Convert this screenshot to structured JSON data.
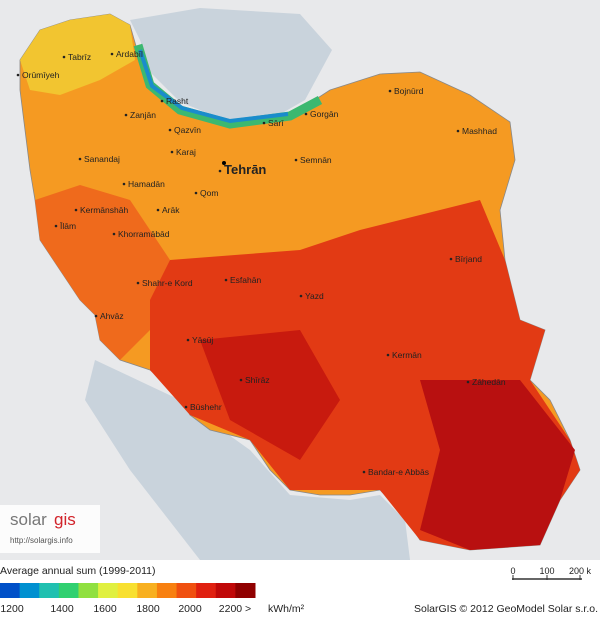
{
  "map": {
    "cities": [
      "Tabrīz",
      "Ardabīl",
      "Orūmīyeh",
      "Rasht",
      "Zanjān",
      "Qazvīn",
      "Sārī",
      "Gorgān",
      "Bojnūrd",
      "Mashhad",
      "Sanandaj",
      "Karaj",
      "Tehrān",
      "Semnān",
      "Hamadān",
      "Qom",
      "Kermānshāh",
      "Arāk",
      "Īlām",
      "Khorramābād",
      "Esfahān",
      "Bīrjand",
      "Shahr-e Kord",
      "Yazd",
      "Ahvāz",
      "Yāsūj",
      "Kermān",
      "Shīrāz",
      "Zāhedān",
      "Būshehr",
      "Bandar-e Abbās"
    ],
    "logo": {
      "solar": "solar",
      "gis": "gis",
      "url": "http://solargis.info"
    },
    "legend": {
      "title": "Average annual sum (1999-2011)",
      "colors": [
        "#0050c8",
        "#0090d0",
        "#20c0b0",
        "#30d070",
        "#90e040",
        "#e0f040",
        "#f8e030",
        "#f8b020",
        "#f88010",
        "#f05010",
        "#e02010",
        "#c00808",
        "#900000"
      ],
      "labels": [
        "1200",
        "1400",
        "1600",
        "1800",
        "2000",
        "2200 >"
      ],
      "unit": "kWh/m²"
    },
    "scale": {
      "labels": [
        "0",
        "100",
        "200 k"
      ]
    },
    "credit": "SolarGIS © 2012 GeoModel Solar s.r.o."
  }
}
